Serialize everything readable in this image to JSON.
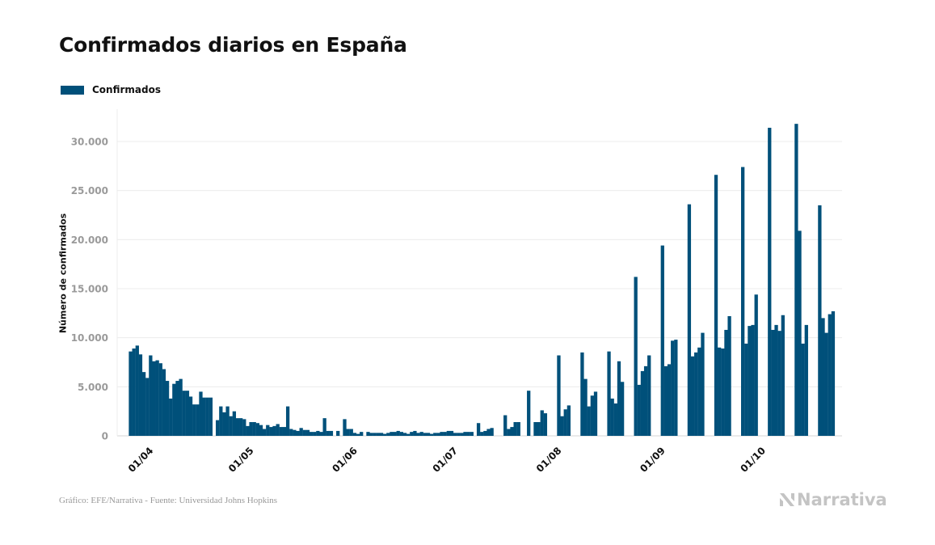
{
  "chart_data": {
    "type": "bar",
    "title": "Confirmados diarios en España",
    "ylabel": "Número de confirmados",
    "xlabel": "",
    "ylim": [
      0,
      33500
    ],
    "yticks": [
      0,
      5000,
      10000,
      15000,
      20000,
      25000,
      30000
    ],
    "ytick_labels": [
      "0",
      "5.000",
      "10.000",
      "15.000",
      "20.000",
      "25.000",
      "30.000"
    ],
    "xticks": [
      {
        "day": 0,
        "label": "01/04"
      },
      {
        "day": 30,
        "label": "01/05"
      },
      {
        "day": 61,
        "label": "01/06"
      },
      {
        "day": 91,
        "label": "01/07"
      },
      {
        "day": 122,
        "label": "01/08"
      },
      {
        "day": 153,
        "label": "01/09"
      },
      {
        "day": 183,
        "label": "01/10"
      }
    ],
    "legend": {
      "position": "top-left"
    },
    "grid": true,
    "series": [
      {
        "name": "Confirmados",
        "color": "#00507a",
        "start_date": "2020-03-26",
        "values": [
          8600,
          8900,
          9200,
          8300,
          6500,
          5900,
          8200,
          7600,
          7700,
          7400,
          6800,
          5600,
          3800,
          5300,
          5600,
          5800,
          4600,
          4600,
          4000,
          3200,
          3200,
          4500,
          3900,
          3900,
          3900,
          0,
          1600,
          3000,
          2400,
          3000,
          2000,
          2500,
          1800,
          1800,
          1700,
          1000,
          1400,
          1400,
          1300,
          1100,
          700,
          1100,
          900,
          1000,
          1200,
          900,
          900,
          3000,
          700,
          600,
          500,
          800,
          600,
          600,
          400,
          400,
          500,
          400,
          1800,
          500,
          500,
          0,
          500,
          0,
          1700,
          700,
          700,
          300,
          200,
          400,
          0,
          400,
          300,
          300,
          300,
          300,
          200,
          300,
          400,
          400,
          500,
          400,
          300,
          200,
          400,
          500,
          300,
          400,
          300,
          300,
          200,
          300,
          300,
          400,
          400,
          500,
          500,
          300,
          300,
          300,
          400,
          400,
          400,
          0,
          1300,
          400,
          500,
          700,
          800,
          0,
          0,
          0,
          2100,
          700,
          900,
          1400,
          1400,
          0,
          0,
          4600,
          0,
          1400,
          1400,
          2600,
          2300,
          0,
          0,
          0,
          8200,
          2000,
          2700,
          3100,
          0,
          0,
          0,
          8500,
          5800,
          3000,
          4100,
          4500,
          0,
          0,
          0,
          8600,
          3800,
          3300,
          7600,
          5500,
          0,
          0,
          0,
          16200,
          5200,
          6600,
          7100,
          8200,
          0,
          0,
          0,
          19400,
          7100,
          7300,
          9700,
          9800,
          0,
          0,
          0,
          23600,
          8100,
          8500,
          9000,
          10500,
          0,
          0,
          0,
          26600,
          9000,
          8900,
          10800,
          12200,
          0,
          0,
          0,
          27400,
          9400,
          11200,
          11300,
          14400,
          0,
          0,
          0,
          31400,
          10800,
          11300,
          10700,
          12300,
          0,
          0,
          0,
          31800,
          20900,
          9400,
          11300,
          0,
          0,
          0,
          23500,
          12000,
          10500,
          12400,
          12700
        ]
      }
    ]
  },
  "footer": {
    "source": "Gráfico: EFE/Narrativa - Fuente: Universidad Johns Hopkins",
    "brand": "Narrativa"
  }
}
